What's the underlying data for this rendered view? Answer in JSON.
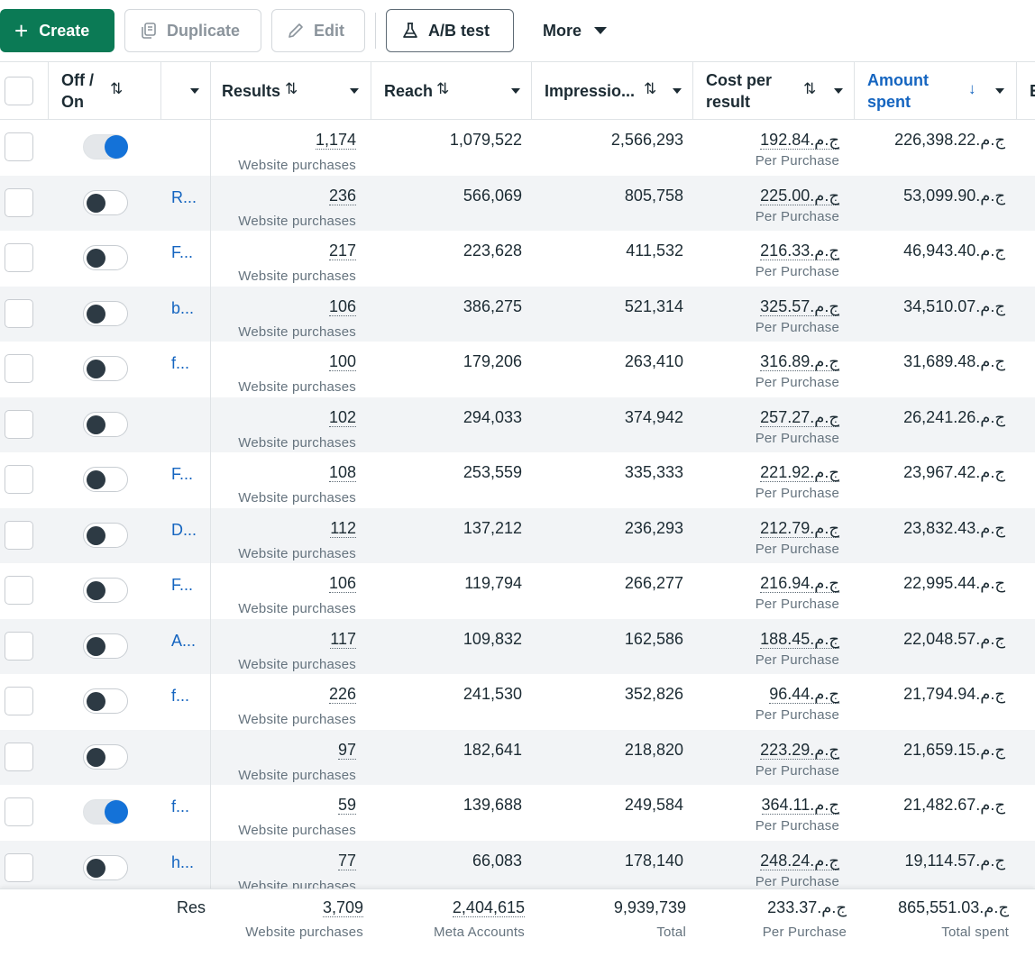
{
  "toolbar": {
    "create": "Create",
    "duplicate": "Duplicate",
    "edit": "Edit",
    "ab_test": "A/B test",
    "more": "More"
  },
  "columns": {
    "off_on": "Off / On",
    "results": "Results",
    "reach": "Reach",
    "impressions": "Impressio...",
    "cost_per_result": "Cost per result",
    "amount_spent": "Amount spent",
    "overflow": "E"
  },
  "rows": [
    {
      "on": true,
      "name": "",
      "results": "1,174",
      "results_sub": "Website purchases",
      "reach": "1,079,522",
      "impressions": "2,566,293",
      "cost": "ج.م.192.84",
      "cost_sub": "Per Purchase",
      "amount": "ج.م.226,398.22"
    },
    {
      "on": false,
      "name": "R...",
      "results": "236",
      "results_sub": "Website purchases",
      "reach": "566,069",
      "impressions": "805,758",
      "cost": "ج.م.225.00",
      "cost_sub": "Per Purchase",
      "amount": "ج.م.53,099.90"
    },
    {
      "on": false,
      "name": "F...",
      "results": "217",
      "results_sub": "Website purchases",
      "reach": "223,628",
      "impressions": "411,532",
      "cost": "ج.م.216.33",
      "cost_sub": "Per Purchase",
      "amount": "ج.م.46,943.40"
    },
    {
      "on": false,
      "name": "b...",
      "results": "106",
      "results_sub": "Website purchases",
      "reach": "386,275",
      "impressions": "521,314",
      "cost": "ج.م.325.57",
      "cost_sub": "Per Purchase",
      "amount": "ج.م.34,510.07"
    },
    {
      "on": false,
      "name": "f...",
      "results": "100",
      "results_sub": "Website purchases",
      "reach": "179,206",
      "impressions": "263,410",
      "cost": "ج.م.316.89",
      "cost_sub": "Per Purchase",
      "amount": "ج.م.31,689.48"
    },
    {
      "on": false,
      "name": "",
      "results": "102",
      "results_sub": "Website purchases",
      "reach": "294,033",
      "impressions": "374,942",
      "cost": "ج.م.257.27",
      "cost_sub": "Per Purchase",
      "amount": "ج.م.26,241.26"
    },
    {
      "on": false,
      "name": "F...",
      "results": "108",
      "results_sub": "Website purchases",
      "reach": "253,559",
      "impressions": "335,333",
      "cost": "ج.م.221.92",
      "cost_sub": "Per Purchase",
      "amount": "ج.م.23,967.42"
    },
    {
      "on": false,
      "name": "D...",
      "results": "112",
      "results_sub": "Website purchases",
      "reach": "137,212",
      "impressions": "236,293",
      "cost": "ج.م.212.79",
      "cost_sub": "Per Purchase",
      "amount": "ج.م.23,832.43"
    },
    {
      "on": false,
      "name": "F...",
      "results": "106",
      "results_sub": "Website purchases",
      "reach": "119,794",
      "impressions": "266,277",
      "cost": "ج.م.216.94",
      "cost_sub": "Per Purchase",
      "amount": "ج.م.22,995.44"
    },
    {
      "on": false,
      "name": "A...",
      "results": "117",
      "results_sub": "Website purchases",
      "reach": "109,832",
      "impressions": "162,586",
      "cost": "ج.م.188.45",
      "cost_sub": "Per Purchase",
      "amount": "ج.م.22,048.57"
    },
    {
      "on": false,
      "name": "f...",
      "results": "226",
      "results_sub": "Website purchases",
      "reach": "241,530",
      "impressions": "352,826",
      "cost": "ج.م.96.44",
      "cost_sub": "Per Purchase",
      "amount": "ج.م.21,794.94"
    },
    {
      "on": false,
      "name": "",
      "results": "97",
      "results_sub": "Website purchases",
      "reach": "182,641",
      "impressions": "218,820",
      "cost": "ج.م.223.29",
      "cost_sub": "Per Purchase",
      "amount": "ج.م.21,659.15"
    },
    {
      "on": true,
      "name": "f...",
      "results": "59",
      "results_sub": "Website purchases",
      "reach": "139,688",
      "impressions": "249,584",
      "cost": "ج.م.364.11",
      "cost_sub": "Per Purchase",
      "amount": "ج.م.21,482.67"
    },
    {
      "on": false,
      "name": "h...",
      "results": "77",
      "results_sub": "Website purchases",
      "reach": "66,083",
      "impressions": "178,140",
      "cost": "ج.م.248.24",
      "cost_sub": "Per Purchase",
      "amount": "ج.م.19,114.57"
    }
  ],
  "totals": {
    "label": "Res",
    "results": "3,709",
    "results_sub": "Website purchases",
    "reach": "2,404,615",
    "reach_sub": "Meta Accounts",
    "impressions": "9,939,739",
    "impressions_sub": "Total",
    "cost": "ج.م.233.37",
    "cost_sub": "Per Purchase",
    "amount": "ج.م.865,551.03",
    "amount_sub": "Total spent"
  },
  "colors": {
    "create_bg": "#0b7a55",
    "link": "#1565c0",
    "toggle_on": "#1472d8",
    "toggle_off_knob": "#2d3a44",
    "row_alt": "#f2f4f6"
  },
  "icons": {
    "create": "plus-icon",
    "duplicate": "duplicate-icon",
    "edit": "pencil-icon",
    "ab_test": "flask-icon",
    "more": "caret-down-icon",
    "sort": "sort-arrows-icon",
    "sorted_desc": "arrow-down-icon"
  }
}
